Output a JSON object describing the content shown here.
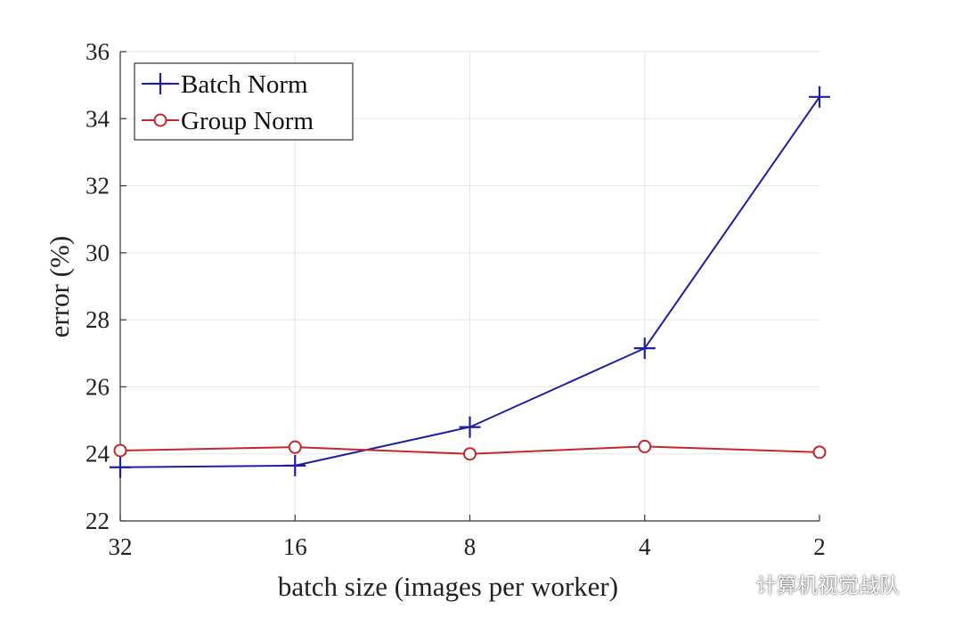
{
  "chart_data": {
    "type": "line",
    "categories": [
      "32",
      "16",
      "8",
      "4",
      "2"
    ],
    "series": [
      {
        "name": "Batch Norm",
        "color": "#1f1f9e",
        "marker": "plus",
        "values": [
          23.6,
          23.65,
          24.8,
          27.15,
          34.65
        ]
      },
      {
        "name": "Group Norm",
        "color": "#c0282d",
        "marker": "circle",
        "values": [
          24.1,
          24.2,
          24.0,
          24.22,
          24.05
        ]
      }
    ],
    "xlabel": "batch size (images per worker)",
    "ylabel": "error (%)",
    "ylim": [
      22,
      36
    ],
    "yticks": [
      22,
      24,
      26,
      28,
      30,
      32,
      34,
      36
    ],
    "grid": true,
    "legend_position": "top-left"
  },
  "watermark": {
    "text": "计算机视觉战队",
    "icon": "wechat-icon"
  }
}
